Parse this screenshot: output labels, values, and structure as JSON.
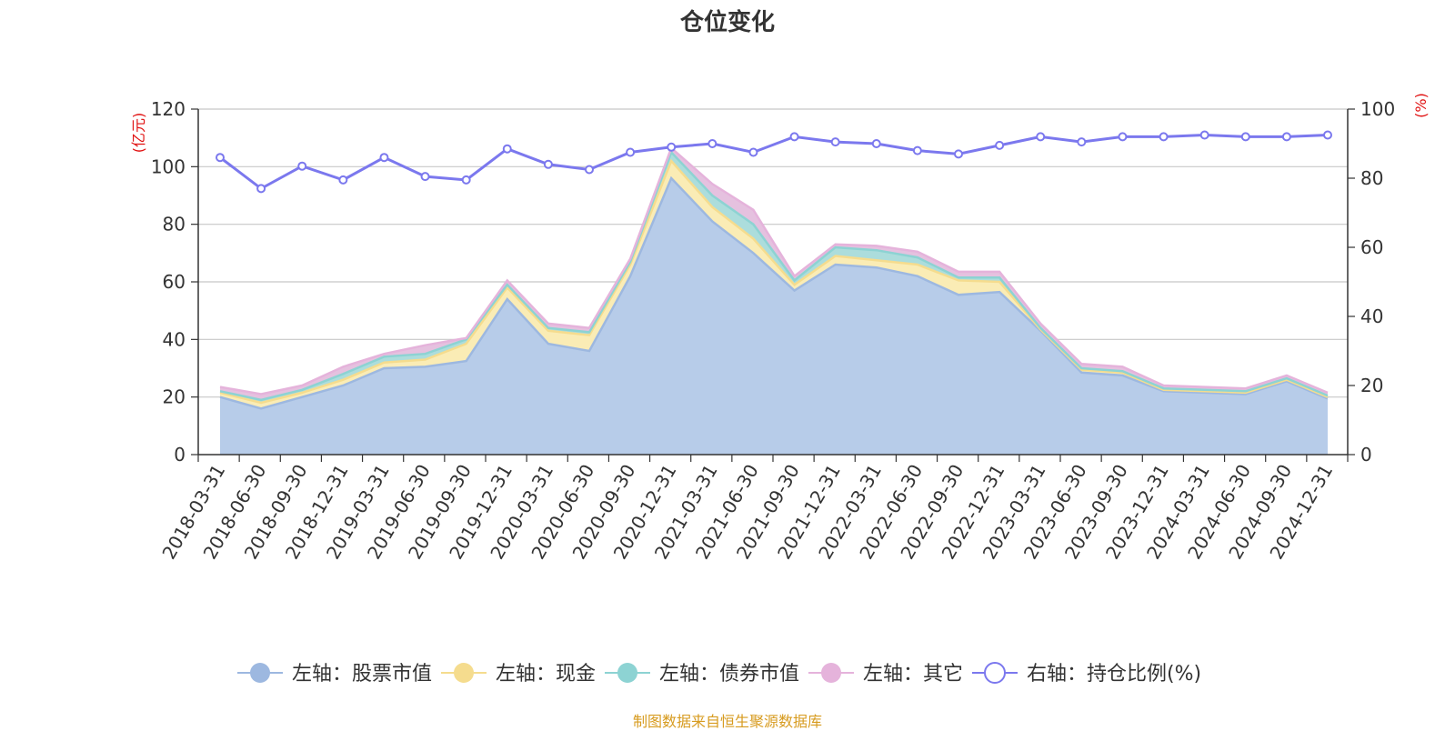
{
  "title": "仓位变化",
  "source": "制图数据来自恒生聚源数据库",
  "chart_data": {
    "type": "area",
    "stacked": true,
    "title": "仓位变化",
    "categories": [
      "2018-03-31",
      "2018-06-30",
      "2018-09-30",
      "2018-12-31",
      "2019-03-31",
      "2019-06-30",
      "2019-09-30",
      "2019-12-31",
      "2020-03-31",
      "2020-06-30",
      "2020-09-30",
      "2020-12-31",
      "2021-03-31",
      "2021-06-30",
      "2021-09-30",
      "2021-12-31",
      "2022-03-31",
      "2022-06-30",
      "2022-09-30",
      "2022-12-31",
      "2023-03-31",
      "2023-06-30",
      "2023-09-30",
      "2023-12-31",
      "2024-03-31",
      "2024-06-30",
      "2024-09-30",
      "2024-12-31"
    ],
    "left_axis": {
      "unit": "(亿元)",
      "ylim": [
        0,
        120
      ],
      "ticks": [
        0,
        20,
        40,
        60,
        80,
        100,
        120
      ]
    },
    "right_axis": {
      "unit": "(%)",
      "ylim": [
        0,
        100
      ],
      "ticks": [
        0,
        20,
        40,
        60,
        80,
        100
      ]
    },
    "series": [
      {
        "name": "左轴：股票市值",
        "axis": "left",
        "color": "#9db8e0",
        "fill": "#b7cce9",
        "values": [
          20,
          16,
          20,
          24,
          30,
          30.5,
          32.5,
          54,
          38.5,
          36,
          62,
          96,
          81,
          70,
          57,
          66,
          65,
          62,
          55.5,
          56.5,
          43,
          28.5,
          27.5,
          22,
          21.5,
          21,
          25.5,
          19.5
        ]
      },
      {
        "name": "左轴：现金",
        "axis": "left",
        "color": "#f5dc8e",
        "fill": "#faecb5",
        "values": [
          1.5,
          2,
          1.5,
          2,
          2,
          2.5,
          6,
          4,
          4.5,
          5.5,
          4,
          6,
          5,
          5,
          2,
          3,
          2.5,
          4,
          5,
          3.5,
          0.5,
          1,
          1,
          0.5,
          0.5,
          0.5,
          0.5,
          0.5
        ]
      },
      {
        "name": "左轴：债券市值",
        "axis": "left",
        "color": "#8dd3d3",
        "fill": "#acdddc",
        "values": [
          0.5,
          1,
          1,
          2,
          2,
          2,
          1.5,
          1,
          1,
          1,
          1,
          3,
          4,
          5,
          1.5,
          3,
          3.5,
          2.5,
          1,
          1.5,
          0.5,
          0.5,
          0.5,
          0.5,
          0.5,
          0.5,
          0.5,
          0.5
        ]
      },
      {
        "name": "左轴：其它",
        "axis": "left",
        "color": "#e5b3db",
        "fill": "#e5c1df",
        "values": [
          1.5,
          2,
          1.5,
          2.5,
          1,
          3,
          0.5,
          1.5,
          1.5,
          1.5,
          1,
          1.5,
          4,
          5,
          1.5,
          1,
          1.5,
          2,
          2,
          2,
          1.5,
          1.5,
          1.5,
          1,
          1,
          1,
          1,
          1
        ]
      },
      {
        "name": "右轴：持仓比例(%)",
        "axis": "right",
        "color": "#7b78ee",
        "values": [
          86,
          77,
          83.5,
          79.5,
          86,
          80.5,
          79.5,
          88.5,
          84,
          82.5,
          87.5,
          89,
          90,
          87.5,
          92,
          90.5,
          90,
          88,
          87,
          89.5,
          92,
          90.5,
          92,
          92,
          92.5,
          92,
          92,
          92.5
        ]
      }
    ]
  }
}
